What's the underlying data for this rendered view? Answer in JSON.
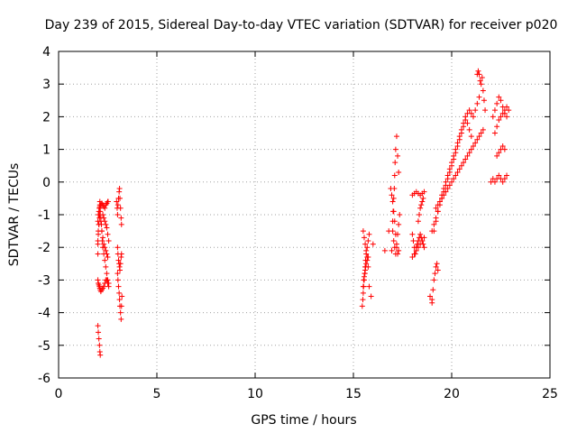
{
  "chart_data": {
    "type": "scatter",
    "title": "Day 239 of 2015, Sidereal Day-to-day VTEC variation (SDTVAR) for receiver p020",
    "xlabel": "GPS time / hours",
    "ylabel": "SDTVAR / TECUs",
    "xlim": [
      0,
      25
    ],
    "ylim": [
      -6,
      4
    ],
    "xticks": [
      "0",
      "5",
      "10",
      "15",
      "20",
      "25"
    ],
    "yticks": [
      "-6",
      "-5",
      "-4",
      "-3",
      "-2",
      "-1",
      "0",
      "1",
      "2",
      "3",
      "4"
    ],
    "grid": true,
    "marker": "+",
    "color": "#ff0000",
    "series": [
      {
        "name": "SDTVAR",
        "x": [
          2.0,
          2.0,
          2.02,
          2.05,
          2.05,
          2.08,
          2.1,
          2.1,
          2.12,
          2.15,
          2.18,
          2.2,
          2.22,
          2.25,
          2.3,
          2.35,
          2.4,
          2.45,
          2.5,
          2.55,
          2.0,
          2.02,
          2.05,
          2.08,
          2.1,
          2.12,
          2.15,
          2.2,
          2.25,
          2.3,
          2.35,
          2.4,
          2.45,
          2.5,
          2.55,
          2.0,
          2.02,
          2.05,
          2.08,
          2.1,
          2.15,
          2.2,
          2.25,
          2.3,
          2.35,
          2.4,
          2.45,
          2.5,
          2.52,
          2.0,
          2.02,
          2.05,
          2.08,
          2.1,
          2.15,
          2.2,
          2.25,
          2.3,
          2.35,
          2.4,
          2.45,
          2.5,
          2.0,
          2.02,
          2.05,
          2.08,
          2.1,
          2.12,
          2.25,
          2.3,
          2.35,
          2.4,
          2.45,
          2.5,
          2.55,
          2.95,
          2.98,
          3.0,
          3.02,
          3.05,
          3.08,
          3.1,
          3.12,
          3.15,
          3.18,
          3.2,
          3.0,
          3.02,
          3.05,
          3.08,
          3.1,
          3.12,
          3.15,
          3.18,
          3.2,
          3.0,
          3.02,
          3.05,
          3.08,
          3.1,
          3.12,
          3.15,
          3.18,
          3.2,
          3.22,
          15.45,
          15.48,
          15.5,
          15.52,
          15.55,
          15.58,
          15.6,
          15.62,
          15.65,
          15.7,
          15.75,
          15.8,
          15.5,
          15.52,
          15.55,
          15.58,
          15.6,
          15.62,
          15.65,
          15.7,
          15.75,
          15.5,
          15.55,
          15.6,
          15.65,
          15.7,
          15.75,
          15.8,
          15.9,
          16.0,
          16.6,
          16.8,
          16.95,
          17.0,
          17.0,
          17.02,
          17.05,
          17.08,
          17.1,
          17.12,
          17.15,
          17.2,
          17.25,
          17.3,
          16.9,
          16.95,
          17.0,
          17.05,
          17.1,
          17.15,
          17.2,
          17.25,
          17.3,
          17.05,
          17.1,
          17.15,
          17.2,
          17.25,
          17.3,
          17.35,
          18.0,
          18.1,
          18.2,
          18.3,
          18.4,
          18.5,
          18.6,
          18.0,
          18.05,
          18.1,
          18.15,
          18.2,
          18.25,
          18.3,
          18.35,
          18.4,
          18.45,
          18.5,
          18.55,
          18.6,
          18.0,
          18.1,
          18.2,
          18.3,
          18.4,
          18.5,
          18.6,
          18.3,
          18.35,
          18.4,
          18.45,
          18.5,
          18.55,
          18.9,
          19.0,
          19.1,
          19.2,
          19.3,
          19.4,
          19.5,
          19.6,
          19.7,
          19.8,
          19.9,
          20.0,
          20.1,
          20.2,
          20.3,
          20.4,
          20.5,
          20.6,
          20.7,
          20.8,
          20.9,
          21.0,
          19.0,
          19.1,
          19.2,
          19.3,
          19.4,
          19.5,
          19.6,
          19.7,
          19.8,
          19.9,
          20.0,
          20.1,
          20.2,
          20.3,
          20.4,
          20.5,
          20.6,
          20.7,
          20.8,
          20.9,
          21.0,
          21.1,
          21.2,
          21.3,
          21.4,
          19.2,
          19.3,
          19.4,
          19.5,
          19.6,
          19.7,
          19.8,
          19.9,
          20.0,
          20.1,
          20.2,
          20.3,
          20.4,
          20.5,
          20.6,
          20.7,
          20.8,
          20.9,
          21.0,
          21.1,
          21.2,
          21.3,
          21.4,
          21.5,
          21.6,
          19.0,
          19.05,
          19.1,
          19.15,
          19.2,
          19.25,
          19.3,
          21.3,
          21.35,
          21.4,
          21.45,
          21.5,
          21.55,
          21.6,
          21.65,
          21.7,
          22.0,
          22.1,
          22.2,
          22.3,
          22.4,
          22.5,
          22.6,
          22.7,
          22.8,
          22.1,
          22.2,
          22.3,
          22.4,
          22.5,
          22.6,
          22.7,
          22.8,
          22.2,
          22.3,
          22.4,
          22.5,
          22.6,
          22.7,
          22.8,
          22.9,
          22.3,
          22.4,
          22.5,
          22.6,
          22.7
        ],
        "y": [
          -2.2,
          -1.9,
          -1.6,
          -1.3,
          -1.0,
          -0.8,
          -0.6,
          -0.7,
          -0.9,
          -1.1,
          -1.3,
          -1.5,
          -1.8,
          -2.0,
          -2.2,
          -2.4,
          -2.6,
          -2.8,
          -3.0,
          -3.1,
          -3.0,
          -3.1,
          -3.15,
          -3.2,
          -3.25,
          -3.3,
          -3.35,
          -3.3,
          -3.25,
          -3.2,
          -3.1,
          -3.0,
          -3.0,
          -3.1,
          -3.2,
          -1.2,
          -1.0,
          -0.9,
          -0.8,
          -0.75,
          -0.7,
          -0.65,
          -0.7,
          -0.75,
          -0.8,
          -0.7,
          -0.65,
          -0.6,
          -0.6,
          -1.8,
          -1.5,
          -1.3,
          -1.1,
          -1.0,
          -1.2,
          -1.5,
          -1.7,
          -1.9,
          -2.0,
          -2.1,
          -2.2,
          -2.3,
          -4.4,
          -4.6,
          -4.8,
          -5.0,
          -5.2,
          -5.3,
          -1.0,
          -1.1,
          -1.2,
          -1.3,
          -1.4,
          -1.6,
          -1.8,
          -0.6,
          -0.8,
          -1.0,
          -0.7,
          -0.5,
          -0.3,
          -0.2,
          -0.5,
          -0.8,
          -1.1,
          -1.3,
          -2.0,
          -2.2,
          -2.4,
          -2.5,
          -2.6,
          -2.7,
          -2.5,
          -2.3,
          -2.2,
          -2.8,
          -3.0,
          -3.2,
          -3.4,
          -3.6,
          -3.8,
          -4.0,
          -4.2,
          -3.8,
          -3.5,
          -3.8,
          -3.6,
          -3.4,
          -3.2,
          -3.0,
          -2.8,
          -2.6,
          -2.4,
          -2.2,
          -2.0,
          -1.8,
          -1.6,
          -3.2,
          -3.0,
          -2.9,
          -2.8,
          -2.7,
          -2.6,
          -2.5,
          -2.4,
          -2.3,
          -1.5,
          -1.7,
          -1.9,
          -2.1,
          -2.3,
          -2.6,
          -3.2,
          -3.5,
          -1.9,
          -2.1,
          -1.5,
          -2.1,
          -1.5,
          -1.2,
          -0.9,
          -0.5,
          -0.2,
          0.2,
          0.6,
          1.0,
          1.4,
          0.8,
          0.3,
          -0.2,
          -0.4,
          -0.6,
          -0.9,
          -1.2,
          -1.6,
          -2.0,
          -2.2,
          -2.1,
          -1.8,
          -2.0,
          -2.2,
          -1.9,
          -1.6,
          -1.3,
          -1.0,
          -0.4,
          -0.35,
          -0.3,
          -0.35,
          -0.4,
          -0.35,
          -0.3,
          -1.6,
          -1.8,
          -2.0,
          -2.2,
          -2.0,
          -1.9,
          -1.8,
          -1.7,
          -1.6,
          -1.7,
          -1.8,
          -1.9,
          -2.0,
          -2.3,
          -2.2,
          -2.1,
          -2.0,
          -1.9,
          -1.8,
          -1.7,
          -1.2,
          -1.0,
          -0.8,
          -0.7,
          -0.6,
          -0.5,
          -3.5,
          -3.7,
          -1.5,
          -1.2,
          -0.9,
          -0.6,
          -0.4,
          -0.2,
          0.0,
          0.2,
          0.4,
          0.6,
          0.8,
          1.0,
          1.2,
          1.4,
          1.6,
          1.8,
          2.0,
          1.8,
          1.6,
          1.4,
          -1.5,
          -1.3,
          -1.1,
          -0.9,
          -0.7,
          -0.5,
          -0.3,
          -0.1,
          0.1,
          0.3,
          0.5,
          0.7,
          0.9,
          1.1,
          1.3,
          1.5,
          1.7,
          1.9,
          2.1,
          2.2,
          2.1,
          2.0,
          2.2,
          2.4,
          2.6,
          -0.8,
          -0.7,
          -0.6,
          -0.5,
          -0.4,
          -0.3,
          -0.2,
          -0.1,
          0.0,
          0.1,
          0.2,
          0.3,
          0.4,
          0.5,
          0.6,
          0.7,
          0.8,
          0.9,
          1.0,
          1.1,
          1.2,
          1.3,
          1.4,
          1.5,
          1.6,
          -3.6,
          -3.3,
          -3.0,
          -2.8,
          -2.6,
          -2.5,
          -2.7,
          3.3,
          3.4,
          3.3,
          3.1,
          3.0,
          3.2,
          2.8,
          2.5,
          2.2,
          0.0,
          0.1,
          0.0,
          0.1,
          0.2,
          0.1,
          0.0,
          0.1,
          0.2,
          2.0,
          2.2,
          2.4,
          2.6,
          2.5,
          2.3,
          2.1,
          2.0,
          1.5,
          1.7,
          1.9,
          2.0,
          2.1,
          2.2,
          2.3,
          2.2,
          0.8,
          0.9,
          1.0,
          1.1,
          1.0
        ]
      }
    ]
  }
}
